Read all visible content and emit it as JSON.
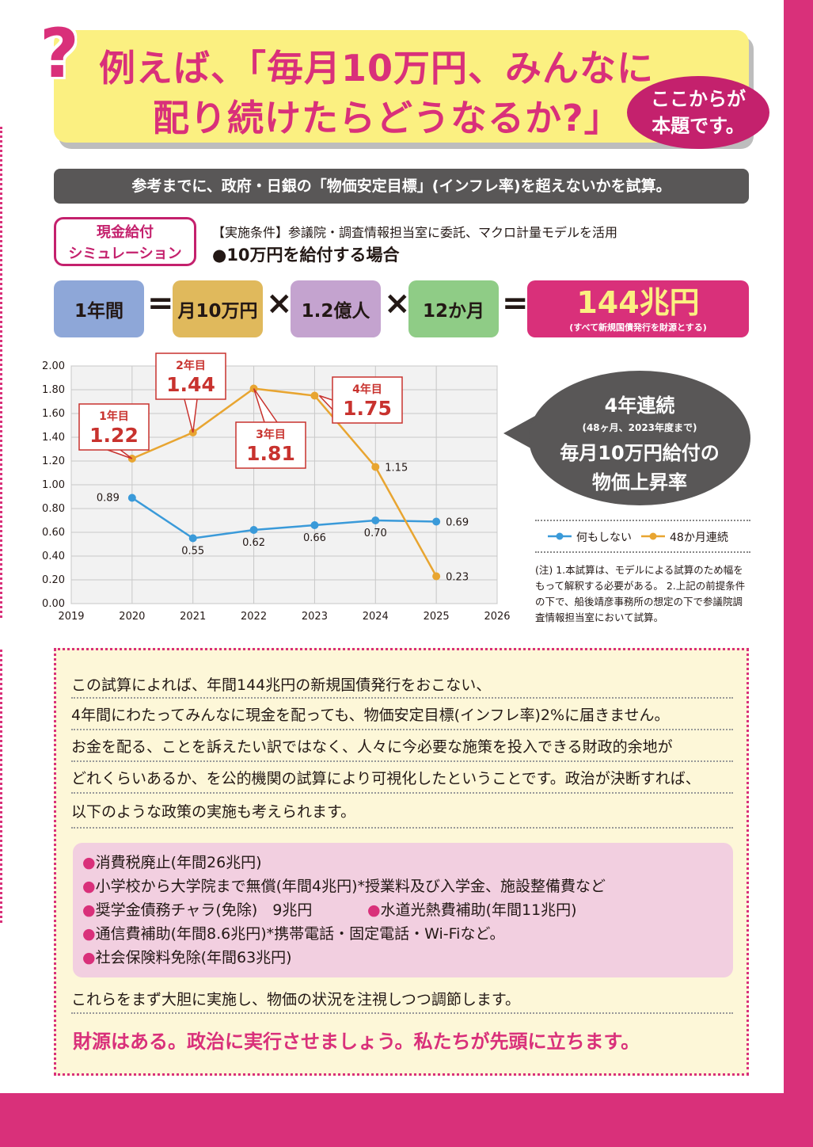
{
  "title": {
    "line1": "例えば、「毎月10万円、みんなに",
    "line2": "配り続けたらどうなるか?」",
    "icon": "question-mark-icon"
  },
  "badge": {
    "line1": "ここからが",
    "line2": "本題です。"
  },
  "intro_bar": "参考までに、政府・日銀の「物価安定目標」(インフレ率)を超えないかを試算。",
  "sim_badge": {
    "line1": "現金給付",
    "line2": "シミュレーション"
  },
  "conditions": "【実施条件】参議院・調査情報担当室に委託、マクロ計量モデルを活用",
  "case": "●10万円を給付する場合",
  "equation": {
    "term1": "1年間",
    "term2": "月10万円",
    "term3": "1.2億人",
    "term4": "12か月",
    "eq": "=",
    "times": "×",
    "result": "144兆円",
    "result_note": "(すべて新規国債発行を財源とする)",
    "colors": {
      "term1": "#8ea7d8",
      "term2": "#e0b95c",
      "term3": "#c4a3cf",
      "term4": "#8fcc86"
    }
  },
  "chart_data": {
    "type": "line",
    "x": [
      2020,
      2021,
      2022,
      2023,
      2024,
      2025
    ],
    "xticks": [
      "2019",
      "2020",
      "2021",
      "2022",
      "2023",
      "2024",
      "2025",
      "2026"
    ],
    "xlim": [
      2019,
      2026
    ],
    "ylim": [
      0,
      2.0
    ],
    "yticks": [
      "0.00",
      "0.20",
      "0.40",
      "0.60",
      "0.80",
      "1.00",
      "1.20",
      "1.40",
      "1.60",
      "1.80",
      "2.00"
    ],
    "grid": true,
    "series": [
      {
        "name": "何もしない",
        "color": "#3a9ad9",
        "values": [
          0.89,
          0.55,
          0.62,
          0.66,
          0.7,
          0.69
        ],
        "labels": [
          "0.89",
          "0.55",
          "0.62",
          "0.66",
          "0.70",
          "0.69"
        ]
      },
      {
        "name": "48か月連続",
        "color": "#e8a531",
        "values": [
          1.22,
          1.44,
          1.81,
          1.75,
          1.15,
          0.23
        ],
        "labels": [
          "",
          "",
          "",
          "",
          "1.15",
          "0.23"
        ]
      }
    ],
    "callouts": [
      {
        "year": "1年目",
        "value": "1.22"
      },
      {
        "year": "2年目",
        "value": "1.44"
      },
      {
        "year": "3年目",
        "value": "1.81"
      },
      {
        "year": "4年目",
        "value": "1.75"
      }
    ]
  },
  "bubble": {
    "line1": "4年連続",
    "line2": "(48ヶ月、2023年度まで)",
    "line3": "毎月10万円給付の",
    "line4": "物価上昇率"
  },
  "legend": {
    "a": "何もしない",
    "b": "48か月連続"
  },
  "note": "(注) 1.本試算は、モデルによる試算のため幅をもって解釈する必要がある。 2.上記の前提条件の下で、船後靖彦事務所の想定の下で参議院調査情報担当室において試算。",
  "paragraphs": [
    "この試算によれば、年間144兆円の新規国債発行をおこない、",
    "4年間にわたってみんなに現金を配っても、物価安定目標(インフレ率)2%に届きません。",
    "お金を配る、ことを訴えたい訳ではなく、人々に今必要な施策を投入できる財政的余地が",
    "どれくらいあるか、を公的機関の試算により可視化したということです。政治が決断すれば、",
    "以下のような政策の実施も考えられます。"
  ],
  "policies": {
    "p1": "消費税廃止(年間26兆円)",
    "p2": "小学校から大学院まで無償(年間4兆円)*授業料及び入学金、施設整備費など",
    "p3": "奨学金債務チャラ(免除)　9兆円",
    "p4": "水道光熱費補助(年間11兆円)",
    "p5": "通信費補助(年間8.6兆円)*携帯電話・固定電話・Wi-Fiなど。",
    "p6": "社会保険料免除(年間63兆円)",
    "bullet": "●"
  },
  "after_list": "これらをまず大胆に実施し、物価の状況を注視しつつ調節します。",
  "closing": "財源はある。政治に実行させましょう。私たちが先頭に立ちます。"
}
